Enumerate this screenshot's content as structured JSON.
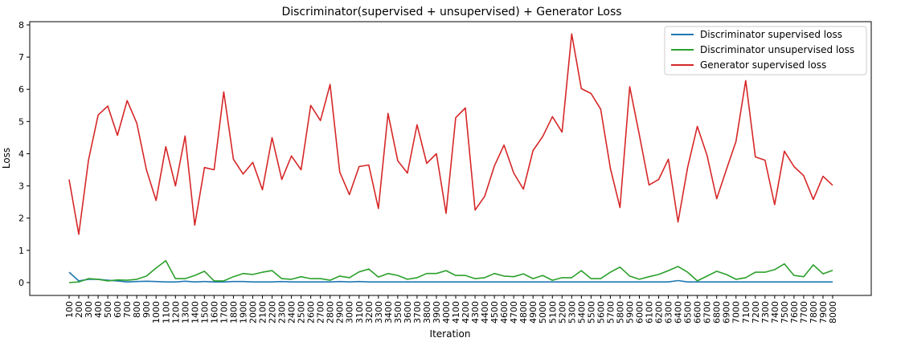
{
  "chart_data": {
    "type": "line",
    "title": "Discriminator(supervised + unsupervised) + Generator Loss",
    "xlabel": "Iteration",
    "ylabel": "Loss",
    "ylim": [
      -0.4,
      8.1
    ],
    "yticks": [
      0,
      1,
      2,
      3,
      4,
      5,
      6,
      7,
      8
    ],
    "legend_position": "top-right",
    "grid": false,
    "x": [
      100,
      200,
      300,
      400,
      500,
      600,
      700,
      800,
      900,
      1000,
      1100,
      1200,
      1300,
      1400,
      1500,
      1600,
      1700,
      1800,
      1900,
      2000,
      2100,
      2200,
      2300,
      2400,
      2500,
      2600,
      2700,
      2800,
      2900,
      3000,
      3100,
      3200,
      3300,
      3400,
      3500,
      3600,
      3700,
      3800,
      3900,
      4000,
      4100,
      4200,
      4300,
      4400,
      4500,
      4600,
      4700,
      4800,
      4900,
      5000,
      5100,
      5200,
      5300,
      5400,
      5500,
      5600,
      5700,
      5800,
      5900,
      6000,
      6100,
      6200,
      6300,
      6400,
      6500,
      6600,
      6700,
      6800,
      6900,
      7000,
      7100,
      7200,
      7300,
      7400,
      7500,
      7600,
      7700,
      7800,
      7900,
      8000
    ],
    "series": [
      {
        "name": "Discriminator supervised loss",
        "color": "#1f77b4",
        "values": [
          0.32,
          0.05,
          0.1,
          0.1,
          0.07,
          0.05,
          0.02,
          0.03,
          0.04,
          0.03,
          0.02,
          0.02,
          0.04,
          0.02,
          0.03,
          0.02,
          0.02,
          0.03,
          0.03,
          0.02,
          0.02,
          0.02,
          0.03,
          0.02,
          0.02,
          0.02,
          0.02,
          0.02,
          0.03,
          0.02,
          0.03,
          0.02,
          0.02,
          0.02,
          0.02,
          0.02,
          0.02,
          0.02,
          0.02,
          0.02,
          0.02,
          0.02,
          0.02,
          0.02,
          0.02,
          0.02,
          0.02,
          0.02,
          0.02,
          0.02,
          0.02,
          0.02,
          0.02,
          0.02,
          0.02,
          0.02,
          0.02,
          0.02,
          0.02,
          0.02,
          0.02,
          0.02,
          0.02,
          0.06,
          0.02,
          0.02,
          0.02,
          0.02,
          0.02,
          0.02,
          0.02,
          0.02,
          0.02,
          0.02,
          0.02,
          0.02,
          0.02,
          0.02,
          0.02,
          0.02
        ]
      },
      {
        "name": "Discriminator unsupervised loss",
        "color": "#2ca02c",
        "values": [
          0.0,
          0.02,
          0.12,
          0.1,
          0.05,
          0.08,
          0.07,
          0.1,
          0.2,
          0.45,
          0.68,
          0.12,
          0.12,
          0.22,
          0.35,
          0.05,
          0.05,
          0.18,
          0.28,
          0.25,
          0.32,
          0.37,
          0.12,
          0.1,
          0.18,
          0.12,
          0.12,
          0.07,
          0.2,
          0.15,
          0.33,
          0.42,
          0.17,
          0.28,
          0.22,
          0.1,
          0.15,
          0.28,
          0.28,
          0.37,
          0.22,
          0.22,
          0.12,
          0.15,
          0.28,
          0.2,
          0.18,
          0.27,
          0.12,
          0.22,
          0.07,
          0.15,
          0.15,
          0.37,
          0.12,
          0.12,
          0.32,
          0.48,
          0.2,
          0.1,
          0.18,
          0.25,
          0.37,
          0.5,
          0.32,
          0.05,
          0.2,
          0.35,
          0.25,
          0.1,
          0.15,
          0.32,
          0.32,
          0.4,
          0.58,
          0.22,
          0.18,
          0.55,
          0.27,
          0.38
        ]
      },
      {
        "name": "Generator supervised loss",
        "color": "#d62728",
        "values": [
          3.2,
          1.5,
          3.8,
          5.2,
          5.48,
          4.57,
          5.65,
          4.95,
          3.5,
          2.55,
          4.22,
          3.0,
          4.55,
          1.78,
          3.57,
          3.5,
          5.92,
          3.83,
          3.37,
          3.73,
          2.88,
          4.5,
          3.2,
          3.93,
          3.5,
          5.5,
          5.03,
          6.15,
          3.43,
          2.73,
          3.6,
          3.65,
          2.3,
          5.25,
          3.78,
          3.4,
          4.9,
          3.7,
          4.0,
          2.15,
          5.12,
          5.42,
          2.25,
          2.68,
          3.62,
          4.27,
          3.4,
          2.9,
          4.1,
          4.53,
          5.15,
          4.67,
          7.72,
          6.02,
          5.87,
          5.38,
          3.55,
          2.33,
          6.08,
          4.58,
          3.03,
          3.2,
          3.83,
          1.88,
          3.58,
          4.85,
          3.95,
          2.6,
          3.5,
          4.38,
          6.27,
          3.9,
          3.8,
          2.42,
          4.08,
          3.6,
          3.32,
          2.58,
          3.3,
          3.02
        ]
      }
    ]
  }
}
